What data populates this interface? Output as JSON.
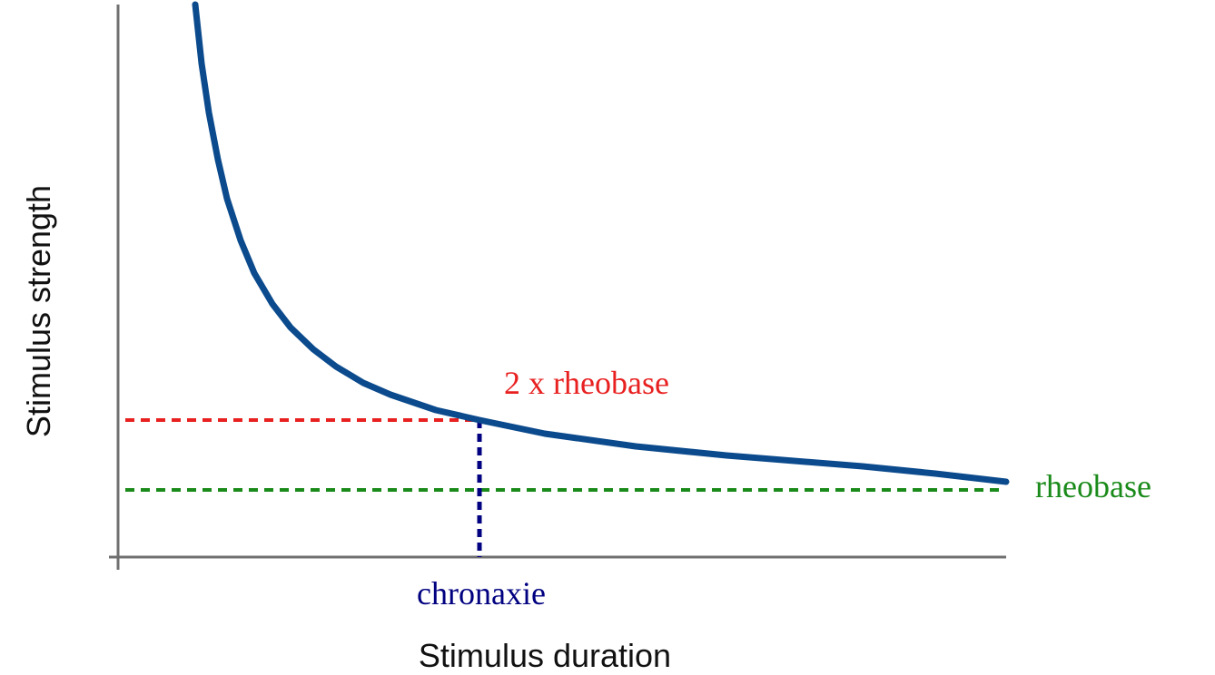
{
  "axes": {
    "x_label": "Stimulus duration",
    "y_label": "Stimulus strength"
  },
  "annotations": {
    "two_rheobase": "2 x rheobase",
    "rheobase": "rheobase",
    "chronaxie": "chronaxie"
  }
}
